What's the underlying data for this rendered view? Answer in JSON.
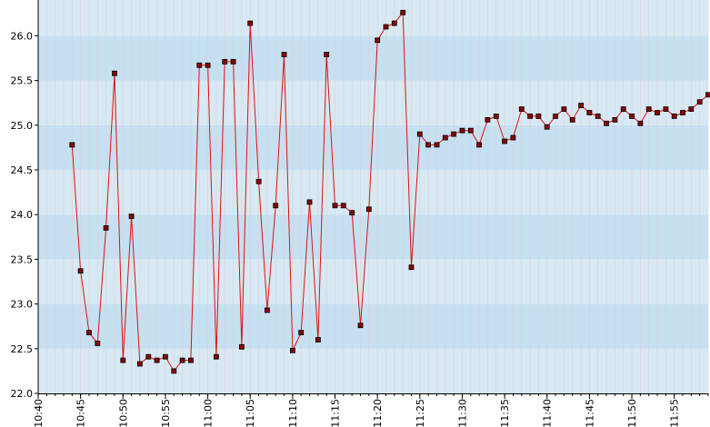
{
  "chart_data": {
    "type": "line",
    "title": "",
    "xlabel": "",
    "ylabel": "",
    "xlim": [
      "10:40",
      "11:59"
    ],
    "ylim": [
      22.0,
      26.4
    ],
    "y_ticks": [
      "22.0",
      "22.5",
      "23.0",
      "23.5",
      "24.0",
      "24.5",
      "25.0",
      "25.5",
      "26.0"
    ],
    "x_ticks": [
      "10:40",
      "10:45",
      "10:50",
      "10:55",
      "11:00",
      "11:05",
      "11:10",
      "11:15",
      "11:20",
      "11:25",
      "11:30",
      "11:35",
      "11:40",
      "11:45",
      "11:50",
      "11:55"
    ],
    "grid": true,
    "legend": "none",
    "colors": {
      "line": "#e01010",
      "marker_fill": "#8b0000",
      "marker_stroke": "#000000",
      "band_light": "#d6e9f5",
      "band_dark": "#c5e0f3",
      "grid": "#e6cccc",
      "axis": "#000000"
    },
    "series": [
      {
        "x": [
          "10:44",
          "10:45",
          "10:46",
          "10:47",
          "10:48",
          "10:49",
          "10:50",
          "10:51",
          "10:52",
          "10:53",
          "10:54",
          "10:55",
          "10:56",
          "10:57",
          "10:58",
          "10:59",
          "11:00",
          "11:01",
          "11:02",
          "11:03",
          "11:04",
          "11:05",
          "11:06",
          "11:07",
          "11:08",
          "11:09",
          "11:10",
          "11:11",
          "11:12",
          "11:13",
          "11:14",
          "11:15",
          "11:16",
          "11:17",
          "11:18",
          "11:19",
          "11:20",
          "11:21",
          "11:22",
          "11:23",
          "11:24",
          "11:25",
          "11:26",
          "11:27",
          "11:28",
          "11:29",
          "11:30",
          "11:31",
          "11:32",
          "11:33",
          "11:34",
          "11:35",
          "11:36",
          "11:37",
          "11:38",
          "11:39",
          "11:40",
          "11:41",
          "11:42",
          "11:43",
          "11:44",
          "11:45",
          "11:46",
          "11:47",
          "11:48",
          "11:49",
          "11:50",
          "11:51",
          "11:52",
          "11:53",
          "11:54",
          "11:55",
          "11:56",
          "11:57",
          "11:58",
          "11:59"
        ],
        "values": [
          24.78,
          23.37,
          22.68,
          22.56,
          23.85,
          25.58,
          22.37,
          23.98,
          22.33,
          22.41,
          22.37,
          22.41,
          22.25,
          22.37,
          22.37,
          25.67,
          25.67,
          22.41,
          25.71,
          25.71,
          22.52,
          26.14,
          24.37,
          22.93,
          24.1,
          25.79,
          22.48,
          22.68,
          24.14,
          22.6,
          25.79,
          24.1,
          24.1,
          24.02,
          22.76,
          24.06,
          25.95,
          26.1,
          26.14,
          26.26,
          23.41,
          24.9,
          24.78,
          24.78,
          24.86,
          24.9,
          24.94,
          24.94,
          24.78,
          25.06,
          25.1,
          24.82,
          24.86,
          25.18,
          25.1,
          25.1,
          24.98,
          25.1,
          25.18,
          25.06,
          25.22,
          25.14,
          25.1,
          25.02,
          25.06,
          25.18,
          25.1,
          25.02,
          25.18,
          25.14,
          25.18,
          25.1,
          25.14,
          25.18,
          25.26,
          25.34
        ]
      }
    ]
  }
}
